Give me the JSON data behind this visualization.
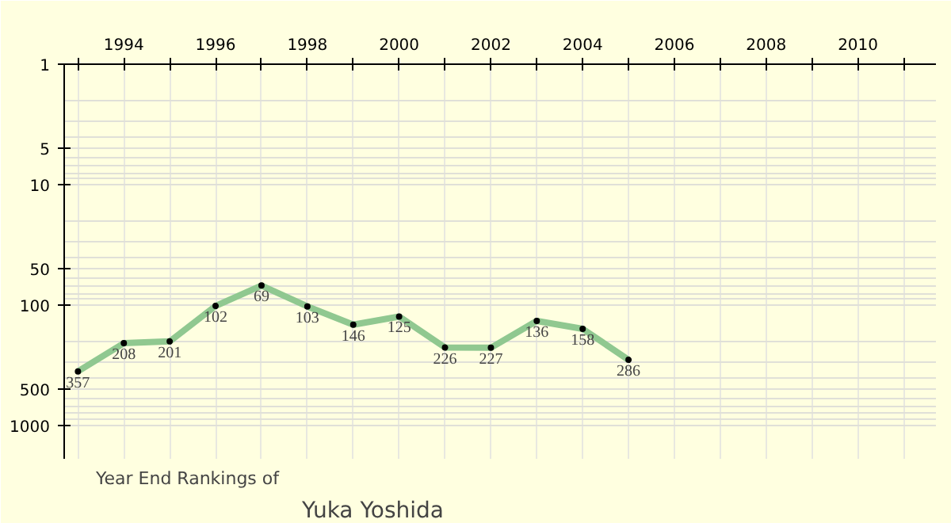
{
  "chart_data": {
    "type": "line",
    "title": "Year End Rankings of",
    "subtitle": "Yuka Yoshida",
    "x": [
      1993,
      1994,
      1995,
      1996,
      1997,
      1998,
      1999,
      2000,
      2001,
      2002,
      2003,
      2004,
      2005
    ],
    "series": [
      {
        "color": "#90c890",
        "values": [
          357,
          208,
          201,
          102,
          69,
          103,
          146,
          125,
          226,
          227,
          136,
          158,
          286
        ]
      }
    ],
    "log": "y",
    "ylim": [
      1900,
      1
    ],
    "yticks": [
      1,
      5,
      10,
      50,
      100,
      500,
      1000
    ],
    "xlim": [
      1992.7,
      2011.7
    ],
    "xticks": [
      {
        "value": 1993,
        "label": null
      },
      1994,
      {
        "value": 1995,
        "label": null
      },
      1996,
      {
        "value": 1997,
        "label": null
      },
      1998,
      {
        "value": 1999,
        "label": null
      },
      2000,
      {
        "value": 2001,
        "label": null
      },
      2002,
      {
        "value": 2003,
        "label": null
      },
      2004,
      {
        "value": 2005,
        "label": null
      },
      2006,
      {
        "value": 2007,
        "label": null
      },
      2008,
      {
        "value": 2009,
        "label": null
      },
      2010,
      {
        "value": 2011,
        "label": null
      }
    ],
    "grid": true,
    "marker": "circle",
    "line_style": "solid",
    "data_labels": true
  }
}
